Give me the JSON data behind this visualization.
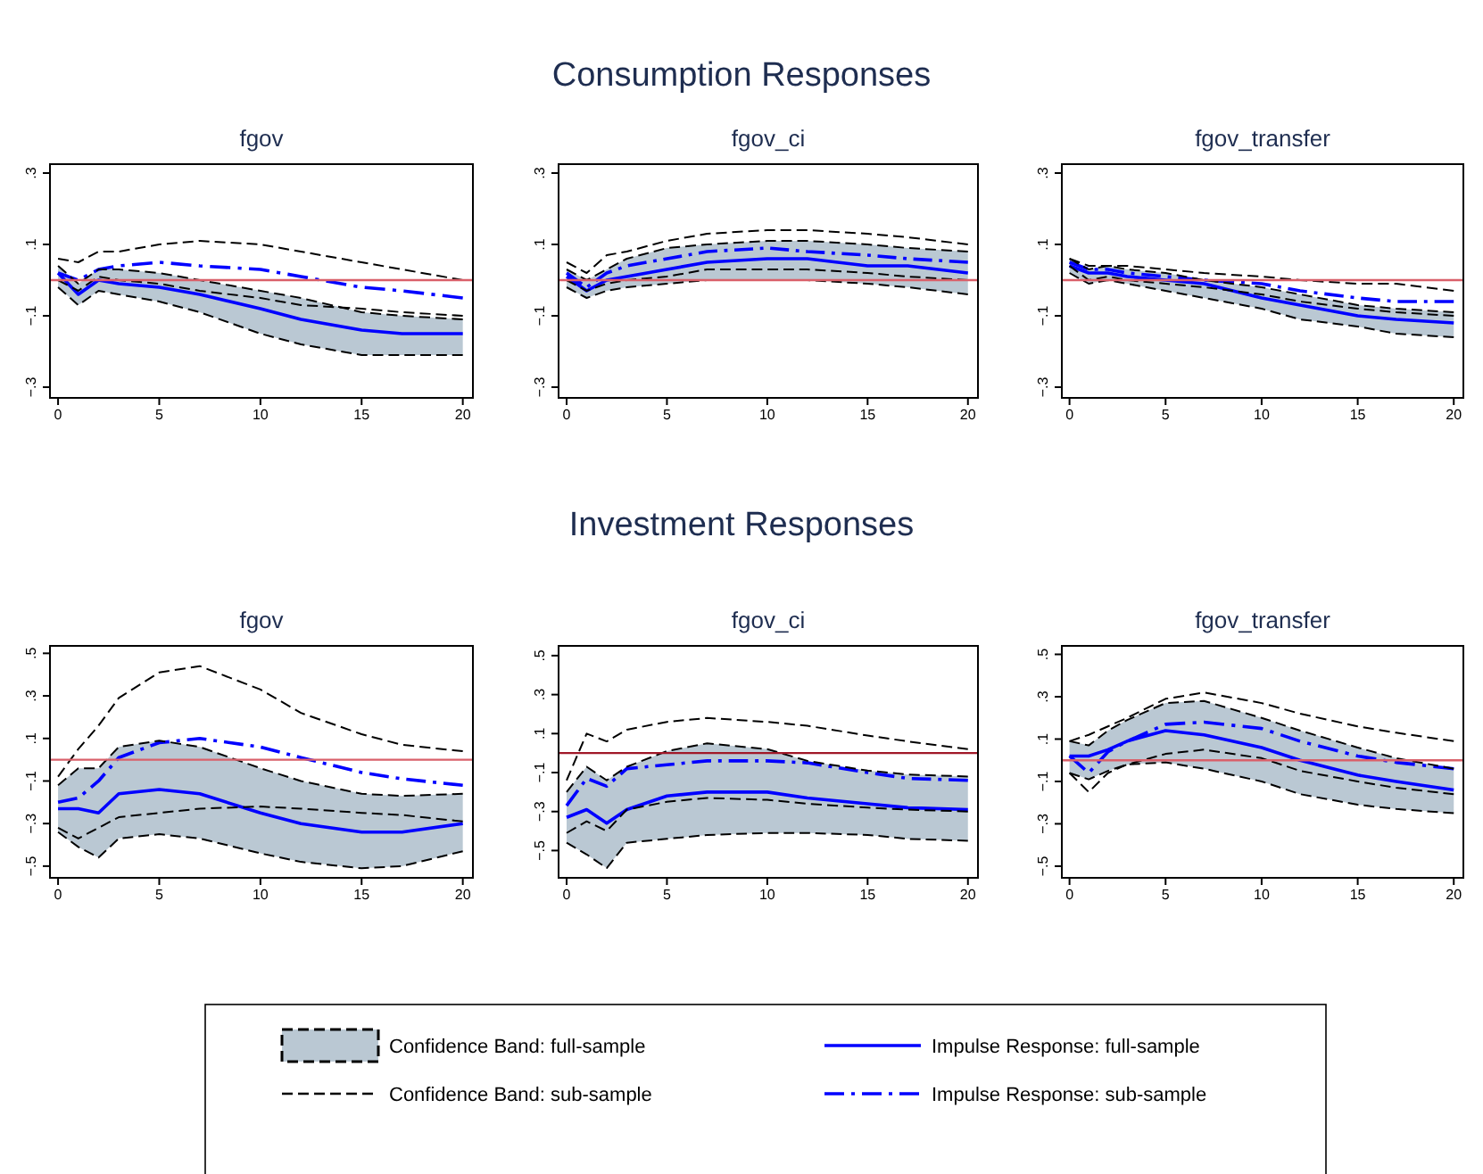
{
  "chart_data": [
    {
      "type": "line",
      "title": "fgov",
      "annotations": [
        "Consumption Responses"
      ],
      "x": [
        0,
        1,
        2,
        3,
        5,
        7,
        10,
        12,
        15,
        17,
        20
      ],
      "xlim": [
        -0.4,
        20.5
      ],
      "xticks": [
        0,
        5,
        10,
        15,
        20
      ],
      "ylim": [
        -0.33,
        0.325
      ],
      "yticks": [
        {
          "value": 0.3,
          "label": ".3"
        },
        {
          "value": 0.1,
          "label": ".1"
        },
        {
          "value": -0.1,
          "label": "−.1"
        },
        {
          "value": -0.3,
          "label": "−.3"
        }
      ],
      "ref_lines": [
        {
          "axis": "y",
          "value": 0,
          "color": "#d9606a"
        }
      ],
      "series": [
        {
          "type": "line",
          "color": "#bac8d3",
          "line_style": "dashed",
          "values": [
            null,
            null,
            null,
            null,
            null,
            null,
            null,
            null,
            null,
            null,
            null
          ],
          "upper": [
            0.04,
            -0.01,
            0.03,
            0.03,
            0.02,
            0.0,
            -0.03,
            -0.05,
            -0.09,
            -0.1,
            -0.11
          ],
          "lower": [
            -0.02,
            -0.07,
            -0.03,
            -0.04,
            -0.06,
            -0.09,
            -0.15,
            -0.18,
            -0.21,
            -0.21,
            -0.21
          ]
        },
        {
          "type": "line",
          "color": "#000000",
          "line_style": "dashed",
          "values": [
            0.04,
            -0.01,
            0.03,
            0.03,
            0.02,
            0.0,
            -0.03,
            -0.05,
            -0.09,
            -0.1,
            -0.11
          ]
        },
        {
          "type": "line",
          "color": "#000000",
          "line_style": "dashed",
          "values": [
            -0.02,
            -0.07,
            -0.03,
            -0.04,
            -0.06,
            -0.09,
            -0.15,
            -0.18,
            -0.21,
            -0.21,
            -0.21
          ]
        },
        {
          "type": "line",
          "color": "#000000",
          "line_style": "dashed",
          "values": [
            0.06,
            0.05,
            0.08,
            0.08,
            0.1,
            0.11,
            0.1,
            0.08,
            0.05,
            0.03,
            0.0
          ]
        },
        {
          "type": "line",
          "color": "#000000",
          "line_style": "dashed",
          "values": [
            0.0,
            -0.03,
            0.01,
            0.0,
            -0.01,
            -0.03,
            -0.05,
            -0.07,
            -0.08,
            -0.09,
            -0.1
          ]
        },
        {
          "type": "line",
          "color": "#0000ff",
          "line_style": "solid",
          "values": [
            0.02,
            -0.04,
            0.0,
            -0.01,
            -0.02,
            -0.04,
            -0.08,
            -0.11,
            -0.14,
            -0.15,
            -0.15
          ]
        },
        {
          "type": "line",
          "color": "#0000ff",
          "line_style": "dashdot",
          "values": [
            0.02,
            0.0,
            0.03,
            0.04,
            0.05,
            0.04,
            0.03,
            0.01,
            -0.02,
            -0.03,
            -0.05
          ]
        }
      ]
    },
    {
      "type": "line",
      "title": "fgov_ci",
      "x": [
        0,
        1,
        2,
        3,
        5,
        7,
        10,
        12,
        15,
        17,
        20
      ],
      "xlim": [
        -0.4,
        20.5
      ],
      "xticks": [
        0,
        5,
        10,
        15,
        20
      ],
      "ylim": [
        -0.33,
        0.325
      ],
      "yticks": [
        {
          "value": 0.3,
          "label": ".3"
        },
        {
          "value": 0.1,
          "label": ".1"
        },
        {
          "value": -0.1,
          "label": "−.1"
        },
        {
          "value": -0.3,
          "label": "−.3"
        }
      ],
      "ref_lines": [
        {
          "axis": "y",
          "value": 0,
          "color": "#d9606a"
        }
      ],
      "series": [
        {
          "type": "line",
          "color": "#bac8d3",
          "line_style": "dashed",
          "values": [
            null,
            null,
            null,
            null,
            null,
            null,
            null,
            null,
            null,
            null,
            null
          ],
          "upper": [
            0.03,
            0.0,
            0.03,
            0.06,
            0.09,
            0.1,
            0.11,
            0.11,
            0.1,
            0.09,
            0.08
          ],
          "lower": [
            -0.02,
            -0.05,
            -0.03,
            -0.02,
            -0.01,
            0.0,
            0.0,
            0.0,
            -0.01,
            -0.02,
            -0.04
          ]
        },
        {
          "type": "line",
          "color": "#000000",
          "line_style": "dashed",
          "values": [
            0.03,
            0.0,
            0.03,
            0.06,
            0.09,
            0.1,
            0.11,
            0.11,
            0.1,
            0.09,
            0.08
          ]
        },
        {
          "type": "line",
          "color": "#000000",
          "line_style": "dashed",
          "values": [
            -0.02,
            -0.05,
            -0.03,
            -0.02,
            -0.01,
            0.0,
            0.0,
            0.0,
            -0.01,
            -0.02,
            -0.04
          ]
        },
        {
          "type": "line",
          "color": "#000000",
          "line_style": "dashed",
          "values": [
            0.05,
            0.02,
            0.07,
            0.08,
            0.11,
            0.13,
            0.14,
            0.14,
            0.13,
            0.12,
            0.1
          ]
        },
        {
          "type": "line",
          "color": "#000000",
          "line_style": "dashed",
          "values": [
            0.0,
            -0.03,
            -0.01,
            0.0,
            0.01,
            0.03,
            0.03,
            0.03,
            0.02,
            0.01,
            0.0
          ]
        },
        {
          "type": "line",
          "color": "#0000ff",
          "line_style": "solid",
          "values": [
            0.01,
            -0.03,
            0.0,
            0.01,
            0.03,
            0.05,
            0.06,
            0.06,
            0.04,
            0.04,
            0.02
          ]
        },
        {
          "type": "line",
          "color": "#0000ff",
          "line_style": "dashdot",
          "values": [
            0.02,
            -0.02,
            0.02,
            0.04,
            0.06,
            0.08,
            0.09,
            0.08,
            0.07,
            0.06,
            0.05
          ]
        }
      ]
    },
    {
      "type": "line",
      "title": "fgov_transfer",
      "x": [
        0,
        1,
        2,
        3,
        5,
        7,
        10,
        12,
        15,
        17,
        20
      ],
      "xlim": [
        -0.4,
        20.5
      ],
      "xticks": [
        0,
        5,
        10,
        15,
        20
      ],
      "ylim": [
        -0.33,
        0.325
      ],
      "yticks": [
        {
          "value": 0.3,
          "label": ".3"
        },
        {
          "value": 0.1,
          "label": ".1"
        },
        {
          "value": -0.1,
          "label": "−.1"
        },
        {
          "value": -0.3,
          "label": "−.3"
        }
      ],
      "ref_lines": [
        {
          "axis": "y",
          "value": 0,
          "color": "#d9606a"
        }
      ],
      "series": [
        {
          "type": "line",
          "color": "#bac8d3",
          "line_style": "dashed",
          "values": [
            null,
            null,
            null,
            null,
            null,
            null,
            null,
            null,
            null,
            null,
            null
          ],
          "upper": [
            0.06,
            0.03,
            0.04,
            0.03,
            0.02,
            0.0,
            -0.02,
            -0.04,
            -0.07,
            -0.08,
            -0.09
          ],
          "lower": [
            0.02,
            -0.01,
            0.0,
            -0.01,
            -0.03,
            -0.05,
            -0.08,
            -0.11,
            -0.13,
            -0.15,
            -0.16
          ]
        },
        {
          "type": "line",
          "color": "#000000",
          "line_style": "dashed",
          "values": [
            0.06,
            0.03,
            0.04,
            0.03,
            0.02,
            0.0,
            -0.02,
            -0.04,
            -0.07,
            -0.08,
            -0.09
          ]
        },
        {
          "type": "line",
          "color": "#000000",
          "line_style": "dashed",
          "values": [
            0.02,
            -0.01,
            0.0,
            -0.01,
            -0.03,
            -0.05,
            -0.08,
            -0.11,
            -0.13,
            -0.15,
            -0.16
          ]
        },
        {
          "type": "line",
          "color": "#000000",
          "line_style": "dashed",
          "values": [
            0.06,
            0.04,
            0.04,
            0.04,
            0.03,
            0.02,
            0.01,
            0.0,
            -0.01,
            -0.01,
            -0.03
          ]
        },
        {
          "type": "line",
          "color": "#000000",
          "line_style": "dashed",
          "values": [
            0.04,
            0.0,
            0.01,
            0.0,
            -0.01,
            -0.02,
            -0.04,
            -0.06,
            -0.08,
            -0.09,
            -0.1
          ]
        },
        {
          "type": "line",
          "color": "#0000ff",
          "line_style": "solid",
          "values": [
            0.04,
            0.02,
            0.02,
            0.01,
            0.0,
            -0.01,
            -0.05,
            -0.07,
            -0.1,
            -0.11,
            -0.12
          ]
        },
        {
          "type": "line",
          "color": "#0000ff",
          "line_style": "dashdot",
          "values": [
            0.05,
            0.03,
            0.03,
            0.02,
            0.01,
            0.0,
            -0.01,
            -0.03,
            -0.05,
            -0.06,
            -0.06
          ]
        }
      ]
    },
    {
      "type": "line",
      "title": "fgov",
      "annotations": [
        "Investment Responses"
      ],
      "x": [
        0,
        1,
        2,
        3,
        5,
        7,
        10,
        12,
        15,
        17,
        20
      ],
      "xlim": [
        -0.4,
        20.5
      ],
      "xticks": [
        0,
        5,
        10,
        15,
        20
      ],
      "ylim": [
        -0.555,
        0.535
      ],
      "yticks": [
        {
          "value": 0.5,
          "label": ".5"
        },
        {
          "value": 0.3,
          "label": ".3"
        },
        {
          "value": 0.1,
          "label": ".1"
        },
        {
          "value": -0.1,
          "label": "−.1"
        },
        {
          "value": -0.3,
          "label": "−.3"
        },
        {
          "value": -0.5,
          "label": "−.5"
        }
      ],
      "ref_lines": [
        {
          "axis": "y",
          "value": 0,
          "color": "#d9606a"
        }
      ],
      "series": [
        {
          "type": "line",
          "color": "#bac8d3",
          "line_style": "dashed",
          "values": [
            null,
            null,
            null,
            null,
            null,
            null,
            null,
            null,
            null,
            null,
            null
          ],
          "upper": [
            -0.12,
            -0.04,
            -0.04,
            0.06,
            0.09,
            0.06,
            -0.04,
            -0.1,
            -0.16,
            -0.17,
            -0.16
          ],
          "lower": [
            -0.34,
            -0.41,
            -0.46,
            -0.37,
            -0.35,
            -0.37,
            -0.44,
            -0.48,
            -0.51,
            -0.5,
            -0.43
          ]
        },
        {
          "type": "line",
          "color": "#000000",
          "line_style": "dashed",
          "values": [
            -0.12,
            -0.04,
            -0.04,
            0.06,
            0.09,
            0.06,
            -0.04,
            -0.1,
            -0.16,
            -0.17,
            -0.16
          ]
        },
        {
          "type": "line",
          "color": "#000000",
          "line_style": "dashed",
          "values": [
            -0.34,
            -0.41,
            -0.46,
            -0.37,
            -0.35,
            -0.37,
            -0.44,
            -0.48,
            -0.51,
            -0.5,
            -0.43
          ]
        },
        {
          "type": "line",
          "color": "#000000",
          "line_style": "dashed",
          "values": [
            -0.08,
            0.05,
            0.16,
            0.29,
            0.41,
            0.44,
            0.33,
            0.22,
            0.12,
            0.07,
            0.04
          ]
        },
        {
          "type": "line",
          "color": "#000000",
          "line_style": "dashed",
          "values": [
            -0.32,
            -0.37,
            -0.32,
            -0.27,
            -0.25,
            -0.23,
            -0.22,
            -0.23,
            -0.25,
            -0.26,
            -0.29
          ]
        },
        {
          "type": "line",
          "color": "#0000ff",
          "line_style": "solid",
          "values": [
            -0.23,
            -0.23,
            -0.25,
            -0.16,
            -0.14,
            -0.16,
            -0.25,
            -0.3,
            -0.34,
            -0.34,
            -0.3
          ]
        },
        {
          "type": "line",
          "color": "#0000ff",
          "line_style": "dashdot",
          "values": [
            -0.2,
            -0.18,
            -0.1,
            0.01,
            0.08,
            0.1,
            0.06,
            0.01,
            -0.06,
            -0.09,
            -0.12
          ]
        }
      ]
    },
    {
      "type": "line",
      "title": "fgov_ci",
      "x": [
        0,
        1,
        2,
        3,
        5,
        7,
        10,
        12,
        15,
        17,
        20
      ],
      "xlim": [
        -0.4,
        20.5
      ],
      "xticks": [
        0,
        5,
        10,
        15,
        20
      ],
      "ylim": [
        -0.64,
        0.55
      ],
      "yticks": [
        {
          "value": 0.5,
          "label": ".5"
        },
        {
          "value": 0.3,
          "label": ".3"
        },
        {
          "value": 0.1,
          "label": ".1"
        },
        {
          "value": -0.1,
          "label": "−.1"
        },
        {
          "value": -0.3,
          "label": "−.3"
        },
        {
          "value": -0.5,
          "label": "−.5"
        }
      ],
      "ref_lines": [
        {
          "axis": "y",
          "value": 0,
          "color": "#a01828"
        }
      ],
      "series": [
        {
          "type": "line",
          "color": "#bac8d3",
          "line_style": "dashed",
          "values": [
            null,
            null,
            null,
            null,
            null,
            null,
            null,
            null,
            null,
            null,
            null
          ],
          "upper": [
            -0.2,
            -0.07,
            -0.14,
            -0.07,
            0.01,
            0.05,
            0.02,
            -0.04,
            -0.09,
            -0.11,
            -0.12
          ],
          "lower": [
            -0.46,
            -0.52,
            -0.59,
            -0.46,
            -0.44,
            -0.42,
            -0.41,
            -0.41,
            -0.42,
            -0.44,
            -0.45
          ]
        },
        {
          "type": "line",
          "color": "#000000",
          "line_style": "dashed",
          "values": [
            -0.2,
            -0.07,
            -0.14,
            -0.07,
            0.01,
            0.05,
            0.02,
            -0.04,
            -0.09,
            -0.11,
            -0.12
          ]
        },
        {
          "type": "line",
          "color": "#000000",
          "line_style": "dashed",
          "values": [
            -0.46,
            -0.52,
            -0.59,
            -0.46,
            -0.44,
            -0.42,
            -0.41,
            -0.41,
            -0.42,
            -0.44,
            -0.45
          ]
        },
        {
          "type": "line",
          "color": "#000000",
          "line_style": "dashed",
          "values": [
            -0.14,
            0.1,
            0.06,
            0.12,
            0.16,
            0.18,
            0.16,
            0.14,
            0.09,
            0.06,
            0.02
          ]
        },
        {
          "type": "line",
          "color": "#000000",
          "line_style": "dashed",
          "values": [
            -0.41,
            -0.35,
            -0.4,
            -0.29,
            -0.25,
            -0.23,
            -0.24,
            -0.26,
            -0.28,
            -0.29,
            -0.3
          ]
        },
        {
          "type": "line",
          "color": "#0000ff",
          "line_style": "solid",
          "values": [
            -0.33,
            -0.29,
            -0.36,
            -0.29,
            -0.22,
            -0.2,
            -0.2,
            -0.23,
            -0.26,
            -0.28,
            -0.29
          ]
        },
        {
          "type": "line",
          "color": "#0000ff",
          "line_style": "dashdot",
          "values": [
            -0.27,
            -0.13,
            -0.17,
            -0.08,
            -0.06,
            -0.04,
            -0.04,
            -0.05,
            -0.1,
            -0.13,
            -0.14
          ]
        }
      ]
    },
    {
      "type": "line",
      "title": "fgov_transfer",
      "legend": "bottom",
      "x": [
        0,
        1,
        2,
        3,
        5,
        7,
        10,
        12,
        15,
        17,
        20
      ],
      "xlim": [
        -0.4,
        20.5
      ],
      "xticks": [
        0,
        5,
        10,
        15,
        20
      ],
      "ylim": [
        -0.555,
        0.54
      ],
      "yticks": [
        {
          "value": 0.5,
          "label": ".5"
        },
        {
          "value": 0.3,
          "label": ".3"
        },
        {
          "value": 0.1,
          "label": ".1"
        },
        {
          "value": -0.1,
          "label": "−.1"
        },
        {
          "value": -0.3,
          "label": "−.3"
        },
        {
          "value": -0.5,
          "label": "−.5"
        }
      ],
      "ref_lines": [
        {
          "axis": "y",
          "value": 0,
          "color": "#d9606a"
        }
      ],
      "series": [
        {
          "name": "Confidence Band: full-sample",
          "type": "line",
          "color": "#bac8d3",
          "line_style": "dashed",
          "values": [
            null,
            null,
            null,
            null,
            null,
            null,
            null,
            null,
            null,
            null,
            null
          ],
          "upper": [
            0.09,
            0.07,
            0.14,
            0.19,
            0.27,
            0.28,
            0.2,
            0.14,
            0.06,
            0.01,
            -0.04
          ],
          "lower": [
            -0.06,
            -0.09,
            -0.05,
            -0.02,
            -0.01,
            -0.04,
            -0.1,
            -0.16,
            -0.21,
            -0.23,
            -0.25
          ]
        },
        {
          "type": "line",
          "color": "#000000",
          "line_style": "dashed",
          "values": [
            0.09,
            0.07,
            0.14,
            0.19,
            0.27,
            0.28,
            0.2,
            0.14,
            0.06,
            0.01,
            -0.04
          ]
        },
        {
          "type": "line",
          "color": "#000000",
          "line_style": "dashed",
          "values": [
            -0.06,
            -0.09,
            -0.05,
            -0.02,
            -0.01,
            -0.04,
            -0.1,
            -0.16,
            -0.21,
            -0.23,
            -0.25
          ]
        },
        {
          "name": "Confidence Band: sub-sample",
          "type": "line",
          "color": "#000000",
          "line_style": "dashed",
          "values": [
            0.09,
            0.12,
            0.16,
            0.2,
            0.29,
            0.32,
            0.27,
            0.22,
            0.16,
            0.13,
            0.09
          ]
        },
        {
          "type": "line",
          "color": "#000000",
          "line_style": "dashed",
          "values": [
            -0.06,
            -0.15,
            -0.06,
            -0.02,
            0.03,
            0.05,
            0.01,
            -0.05,
            -0.1,
            -0.13,
            -0.16
          ]
        },
        {
          "name": "Impulse Response: full-sample",
          "type": "line",
          "color": "#0000ff",
          "line_style": "solid",
          "values": [
            0.02,
            0.02,
            0.05,
            0.09,
            0.14,
            0.12,
            0.06,
            0.0,
            -0.07,
            -0.1,
            -0.14
          ]
        },
        {
          "name": "Impulse Response: sub-sample",
          "type": "line",
          "color": "#0000ff",
          "line_style": "dashdot",
          "values": [
            0.02,
            -0.06,
            0.04,
            0.09,
            0.17,
            0.18,
            0.15,
            0.09,
            0.02,
            -0.01,
            -0.04
          ]
        }
      ]
    }
  ]
}
